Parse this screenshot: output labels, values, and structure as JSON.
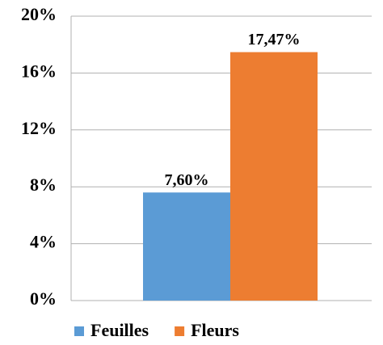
{
  "chart_data": {
    "type": "bar",
    "categories": [
      null
    ],
    "series": [
      {
        "name": "Feuilles",
        "color": "#5b9bd5",
        "values": [
          7.6
        ],
        "value_labels": [
          "7,60%"
        ]
      },
      {
        "name": "Fleurs",
        "color": "#ed7d31",
        "values": [
          17.47
        ],
        "value_labels": [
          "17,47%"
        ]
      }
    ],
    "ylim": [
      0,
      20
    ],
    "yticks": [
      {
        "value": 0,
        "label": "0%"
      },
      {
        "value": 4,
        "label": "4%"
      },
      {
        "value": 8,
        "label": "8%"
      },
      {
        "value": 12,
        "label": "12%"
      },
      {
        "value": 16,
        "label": "16%"
      },
      {
        "value": 20,
        "label": "20%"
      }
    ],
    "grid": true,
    "legend": "bottom"
  }
}
